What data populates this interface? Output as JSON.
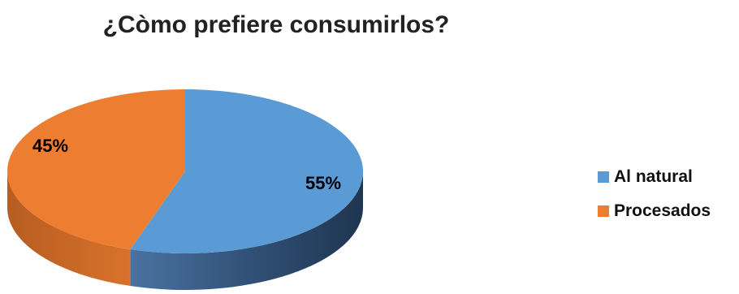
{
  "chart_data": {
    "type": "pie",
    "title": "¿Còmo prefiere consumirlos?",
    "slices": [
      {
        "name": "Al natural",
        "value": 55,
        "label": "55%",
        "color": "#5B9BD5"
      },
      {
        "name": "Procesados",
        "value": 45,
        "label": "45%",
        "color": "#ED7D31"
      }
    ],
    "legend_position": "right",
    "style": "3d"
  }
}
